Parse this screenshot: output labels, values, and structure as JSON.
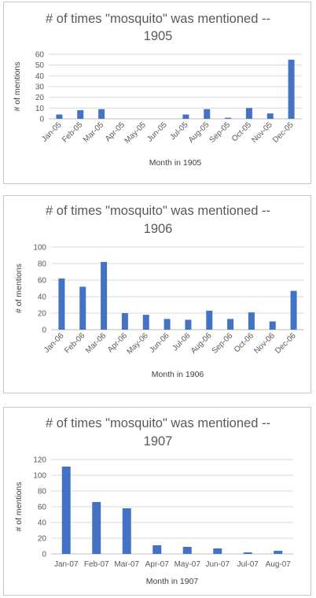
{
  "chart_data": [
    {
      "type": "bar",
      "title": "# of times \"mosquito\" was mentioned -- 1905",
      "xlabel": "Month in 1905",
      "ylabel": "# of mentions",
      "categories": [
        "Jan-05",
        "Feb-05",
        "Mar-05",
        "Apr-05",
        "May-05",
        "Jun-05",
        "Jul-05",
        "Aug-05",
        "Sep-05",
        "Oct-05",
        "Nov-05",
        "Dec-05"
      ],
      "values": [
        4,
        8,
        9,
        0,
        0,
        0,
        4,
        9,
        1,
        10,
        5,
        55
      ],
      "ylim": [
        0,
        60
      ],
      "yticks": [
        0,
        10,
        20,
        30,
        40,
        50,
        60
      ],
      "color": "#4472c4",
      "grid": true,
      "rotate_labels": true
    },
    {
      "type": "bar",
      "title": "# of times \"mosquito\" was mentioned -- 1906",
      "xlabel": "Month in 1906",
      "ylabel": "# of mentions",
      "categories": [
        "Jan-06",
        "Feb-06",
        "Mar-06",
        "Apr-06",
        "May-06",
        "Jun-06",
        "Jul-06",
        "Aug-06",
        "Sep-06",
        "Oct-06",
        "Nov-06",
        "Dec-06"
      ],
      "values": [
        62,
        52,
        82,
        20,
        18,
        13,
        12,
        23,
        13,
        21,
        10,
        47
      ],
      "ylim": [
        0,
        100
      ],
      "yticks": [
        0,
        20,
        40,
        60,
        80,
        100
      ],
      "color": "#4472c4",
      "grid": true,
      "rotate_labels": true
    },
    {
      "type": "bar",
      "title": "# of times \"mosquito\" was mentioned -- 1907",
      "xlabel": "Month in 1907",
      "ylabel": "# of mentions",
      "categories": [
        "Jan-07",
        "Feb-07",
        "Mar-07",
        "Apr-07",
        "May-07",
        "Jun-07",
        "Jul-07",
        "Aug-07"
      ],
      "values": [
        111,
        66,
        58,
        11,
        9,
        7,
        2,
        4
      ],
      "ylim": [
        0,
        120
      ],
      "yticks": [
        0,
        20,
        40,
        60,
        80,
        100,
        120
      ],
      "color": "#4472c4",
      "grid": true,
      "rotate_labels": false
    }
  ]
}
